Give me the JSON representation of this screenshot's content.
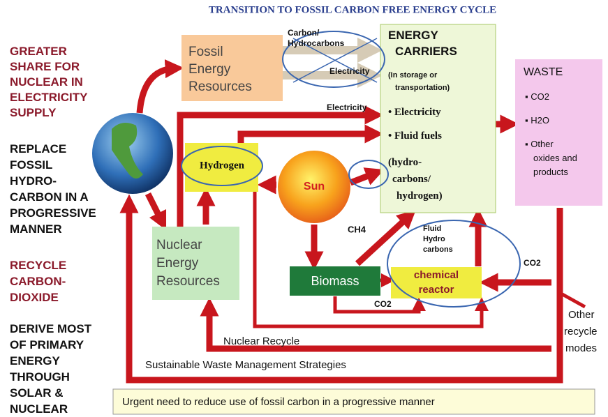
{
  "title": "TRANSITION TO FOSSIL CARBON FREE ENERGY CYCLE",
  "left_panel": [
    {
      "lines": [
        "GREATER",
        "SHARE FOR",
        "NUCLEAR IN",
        "ELECTRICITY",
        "SUPPLY"
      ]
    },
    {
      "lines": [
        "REPLACE",
        "FOSSIL",
        "HYDRO-",
        "CARBON IN A",
        "PROGRESSIVE",
        "MANNER"
      ]
    },
    {
      "lines": [
        "RECYCLE",
        "CARBON-",
        "DIOXIDE"
      ]
    },
    {
      "lines": [
        "DERIVE MOST",
        "OF PRIMARY",
        "ENERGY",
        "THROUGH",
        "SOLAR &",
        "NUCLEAR"
      ]
    }
  ],
  "nodes": {
    "fossil": {
      "lines": [
        "Fossil",
        "Energy",
        "Resources"
      ]
    },
    "carriers": {
      "heading": [
        "ENERGY",
        "CARRIERS"
      ],
      "note": [
        "(In storage or",
        "transportation)"
      ],
      "items": [
        "• Electricity",
        "• Fluid fuels"
      ],
      "detail": [
        "(hydro-",
        "carbons/",
        "hydrogen)"
      ]
    },
    "waste": {
      "heading": "WASTE",
      "items": [
        "▪ CO2",
        "▪ H2O",
        "▪ Other",
        "oxides and",
        "products"
      ]
    },
    "hydrogen": {
      "label": "Hydrogen"
    },
    "sun": {
      "label": "Sun"
    },
    "nuclear": {
      "lines": [
        "Nuclear",
        "Energy",
        "Resources"
      ]
    },
    "biomass": {
      "label": "Biomass"
    },
    "reactor": {
      "lines": [
        "chemical",
        "reactor"
      ]
    }
  },
  "edge_labels": {
    "carbon": [
      "Carbon/",
      "Hydrocarbons"
    ],
    "electricity_top": "Electricity",
    "electricity_mid": "Electricity",
    "ch4": "CH4",
    "fluid": [
      "Fluid",
      "Hydro",
      "carbons"
    ],
    "co2_right": "CO2",
    "co2_bottom": "CO2",
    "nuclear_recycle": "Nuclear Recycle",
    "waste_management": "Sustainable Waste Management Strategies",
    "other": [
      "Other",
      "recycle",
      "modes"
    ]
  },
  "footer": "Urgent need to reduce use of fossil carbon in a progressive manner"
}
